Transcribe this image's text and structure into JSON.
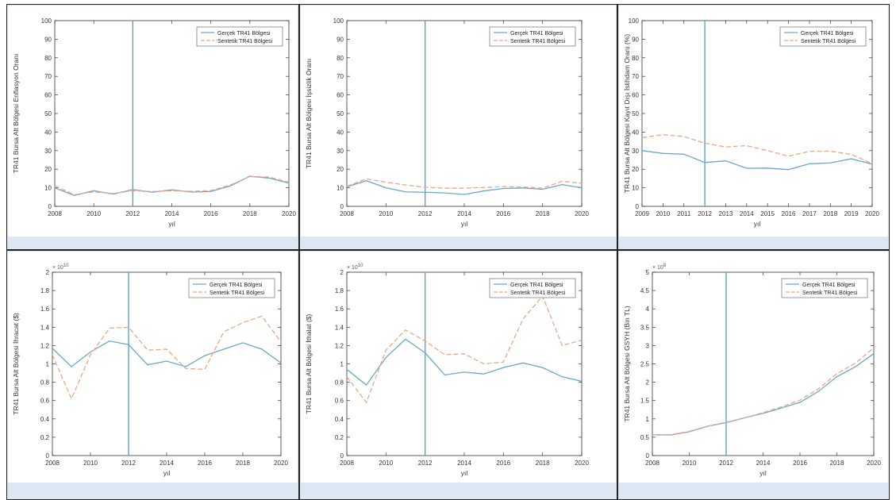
{
  "colors": {
    "real": "#6aa8c9",
    "synth": "#e8a78a",
    "treat": "#5aa5c5",
    "axis": "#333333"
  },
  "legend_labels": {
    "real": "Gerçek TR41 Bölgesi",
    "synth": "Sentetik TR41 Bölgesi"
  },
  "chart_data": [
    {
      "type": "line",
      "xlabel": "yıl",
      "ylabel": "TR41 Bursa Alt Bölgesi Enflasyon Oranı",
      "xlim": [
        2008,
        2020
      ],
      "ylim": [
        0,
        100
      ],
      "xticks": [
        2008,
        2010,
        2012,
        2014,
        2016,
        2018,
        2020
      ],
      "yticks": [
        0,
        10,
        20,
        30,
        40,
        50,
        60,
        70,
        80,
        90,
        100
      ],
      "ytick_labels": [
        "0",
        "10",
        "20",
        "30",
        "40",
        "50",
        "60",
        "70",
        "80",
        "90",
        "100"
      ],
      "exponent": "",
      "treatment_year": 2012,
      "legend": "top-right",
      "x": [
        2008,
        2009,
        2010,
        2011,
        2012,
        2013,
        2014,
        2015,
        2016,
        2017,
        2018,
        2019,
        2020
      ],
      "series": [
        {
          "name": "Gerçek TR41 Bölgesi",
          "values": [
            10,
            5.9,
            8.4,
            6.6,
            9.0,
            7.6,
            8.9,
            7.7,
            8.0,
            11.0,
            16.2,
            15.2,
            12.5
          ]
        },
        {
          "name": "Sentetik TR41 Bölgesi",
          "values": [
            11,
            6.3,
            7.8,
            6.9,
            8.5,
            8.0,
            8.4,
            8.1,
            8.5,
            11.5,
            16.0,
            15.8,
            13.0
          ]
        }
      ]
    },
    {
      "type": "line",
      "xlabel": "yıl",
      "ylabel": "TR41 Bursa Alt Bölgesi İşsizlik Oranı",
      "xlim": [
        2008,
        2020
      ],
      "ylim": [
        0,
        100
      ],
      "xticks": [
        2008,
        2010,
        2012,
        2014,
        2016,
        2018,
        2020
      ],
      "yticks": [
        0,
        10,
        20,
        30,
        40,
        50,
        60,
        70,
        80,
        90,
        100
      ],
      "ytick_labels": [
        "0",
        "10",
        "20",
        "30",
        "40",
        "50",
        "60",
        "70",
        "80",
        "90",
        "100"
      ],
      "exponent": "",
      "treatment_year": 2012,
      "legend": "top-right",
      "x": [
        2008,
        2009,
        2010,
        2011,
        2012,
        2013,
        2014,
        2015,
        2016,
        2017,
        2018,
        2019,
        2020
      ],
      "series": [
        {
          "name": "Gerçek TR41 Bölgesi",
          "values": [
            10.5,
            13.8,
            10.0,
            7.8,
            7.6,
            7.2,
            6.4,
            8.3,
            9.6,
            9.9,
            9.2,
            11.7,
            10.0
          ]
        },
        {
          "name": "Sentetik TR41 Bölgesi",
          "values": [
            10.8,
            14.8,
            13.0,
            11.5,
            10.3,
            9.8,
            9.8,
            10.2,
            10.6,
            10.4,
            9.8,
            13.5,
            12.5
          ]
        }
      ]
    },
    {
      "type": "line",
      "xlabel": "yıl",
      "ylabel": "TR41 Bursa Alt Bölgesi Kayıt Dışı İstihdam Oranı (%)",
      "xlim": [
        2009,
        2020
      ],
      "ylim": [
        0,
        100
      ],
      "xticks": [
        2009,
        2010,
        2011,
        2012,
        2013,
        2014,
        2015,
        2016,
        2017,
        2018,
        2019,
        2020
      ],
      "yticks": [
        0,
        10,
        20,
        30,
        40,
        50,
        60,
        70,
        80,
        90,
        100
      ],
      "ytick_labels": [
        "0",
        "10",
        "20",
        "30",
        "40",
        "50",
        "60",
        "70",
        "80",
        "90",
        "100"
      ],
      "exponent": "",
      "treatment_year": 2012,
      "legend": "top-right",
      "x": [
        2009,
        2010,
        2011,
        2012,
        2013,
        2014,
        2015,
        2016,
        2017,
        2018,
        2019,
        2020
      ],
      "series": [
        {
          "name": "Gerçek TR41 Bölgesi",
          "values": [
            30.0,
            28.5,
            28.1,
            23.6,
            24.5,
            20.5,
            20.6,
            19.8,
            22.9,
            23.4,
            25.6,
            22.7
          ]
        },
        {
          "name": "Sentetik TR41 Bölgesi",
          "values": [
            37.0,
            38.6,
            37.6,
            34.0,
            32.0,
            32.7,
            30.0,
            27.0,
            29.6,
            29.7,
            28.0,
            23.0
          ]
        }
      ]
    },
    {
      "type": "line",
      "xlabel": "yıl",
      "ylabel": "TR41 Bursa Alt Bölgesi İhracat ($)",
      "xlim": [
        2008,
        2020
      ],
      "ylim": [
        0,
        2
      ],
      "xticks": [
        2008,
        2010,
        2012,
        2014,
        2016,
        2018,
        2020
      ],
      "yticks": [
        0,
        0.2,
        0.4,
        0.6,
        0.8,
        1,
        1.2,
        1.4,
        1.6,
        1.8,
        2
      ],
      "ytick_labels": [
        "0",
        "0.2",
        "0.4",
        "0.6",
        "0.8",
        "1",
        "1.2",
        "1.4",
        "1.6",
        "1.8",
        "2"
      ],
      "exponent": "× 10",
      "exponent_power": "10",
      "treatment_year": 2012,
      "legend": "top-right",
      "x": [
        2008,
        2009,
        2010,
        2011,
        2012,
        2013,
        2014,
        2015,
        2016,
        2017,
        2018,
        2019,
        2020
      ],
      "series": [
        {
          "name": "Gerçek TR41 Bölgesi",
          "values": [
            1.17,
            0.97,
            1.13,
            1.25,
            1.21,
            0.99,
            1.03,
            0.97,
            1.09,
            1.16,
            1.23,
            1.16,
            1.01
          ]
        },
        {
          "name": "Sentetik TR41 Bölgesi",
          "values": [
            1.1,
            0.62,
            1.1,
            1.39,
            1.4,
            1.15,
            1.16,
            0.95,
            0.94,
            1.35,
            1.45,
            1.52,
            1.24
          ]
        }
      ]
    },
    {
      "type": "line",
      "xlabel": "yıl",
      "ylabel": "TR41 Bursa Alt Bölgesi İthalat ($)",
      "xlim": [
        2008,
        2020
      ],
      "ylim": [
        0,
        2
      ],
      "xticks": [
        2008,
        2010,
        2012,
        2014,
        2016,
        2018,
        2020
      ],
      "yticks": [
        0,
        0.2,
        0.4,
        0.6,
        0.8,
        1,
        1.2,
        1.4,
        1.6,
        1.8,
        2
      ],
      "ytick_labels": [
        "0",
        "0.2",
        "0.4",
        "0.6",
        "0.8",
        "1",
        "1.2",
        "1.4",
        "1.6",
        "1.8",
        "2"
      ],
      "exponent": "× 10",
      "exponent_power": "10",
      "treatment_year": 2012,
      "legend": "top-right",
      "x": [
        2008,
        2009,
        2010,
        2011,
        2012,
        2013,
        2014,
        2015,
        2016,
        2017,
        2018,
        2019,
        2020
      ],
      "series": [
        {
          "name": "Gerçek TR41 Bölgesi",
          "values": [
            0.94,
            0.77,
            1.07,
            1.27,
            1.12,
            0.88,
            0.91,
            0.89,
            0.96,
            1.01,
            0.96,
            0.86,
            0.81
          ]
        },
        {
          "name": "Sentetik TR41 Bölgesi",
          "values": [
            0.86,
            0.58,
            1.15,
            1.37,
            1.25,
            1.1,
            1.11,
            1.0,
            1.02,
            1.49,
            1.74,
            1.2,
            1.26
          ]
        }
      ]
    },
    {
      "type": "line",
      "xlabel": "yıl",
      "ylabel": "TR41 Bursa Alt Bölgesi GSYH (Bin TL)",
      "xlim": [
        2008,
        2020
      ],
      "ylim": [
        0,
        5
      ],
      "xticks": [
        2008,
        2010,
        2012,
        2014,
        2016,
        2018,
        2020
      ],
      "yticks": [
        0,
        0.5,
        1,
        1.5,
        2,
        2.5,
        3,
        3.5,
        4,
        4.5,
        5
      ],
      "ytick_labels": [
        "0",
        "0.5",
        "1",
        "1.5",
        "2",
        "2.5",
        "3",
        "3.5",
        "4",
        "4.5",
        "5"
      ],
      "exponent": "× 10",
      "exponent_power": "8",
      "treatment_year": 2012,
      "legend": "top-right",
      "x": [
        2008,
        2009,
        2010,
        2011,
        2012,
        2013,
        2014,
        2015,
        2016,
        2017,
        2018,
        2019,
        2020
      ],
      "series": [
        {
          "name": "Gerçek TR41 Bölgesi",
          "values": [
            0.57,
            0.56,
            0.65,
            0.8,
            0.9,
            1.03,
            1.15,
            1.3,
            1.45,
            1.75,
            2.15,
            2.42,
            2.78
          ]
        },
        {
          "name": "Sentetik TR41 Bölgesi",
          "values": [
            0.57,
            0.57,
            0.66,
            0.8,
            0.89,
            1.03,
            1.17,
            1.33,
            1.51,
            1.82,
            2.23,
            2.52,
            2.94
          ]
        }
      ]
    }
  ]
}
